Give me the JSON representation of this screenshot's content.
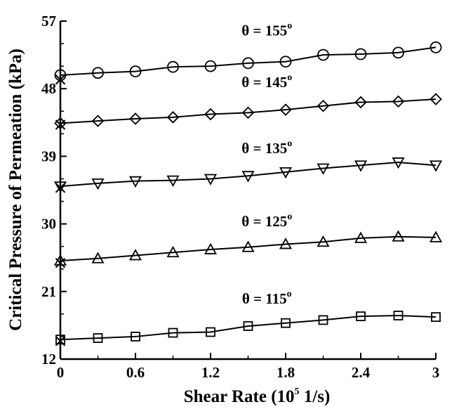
{
  "chart_data": {
    "type": "line",
    "xlabel": "Shear Rate (10",
    "xlabel_sup": "5",
    "xlabel_unit": " 1/s)",
    "ylabel": "Critical Pressure of Permeation (kPa)",
    "xlim": [
      0,
      3
    ],
    "ylim": [
      12,
      57
    ],
    "xticks": [
      "0",
      "0.6",
      "1.2",
      "1.8",
      "2.4",
      "3"
    ],
    "yticks": [
      "12",
      "21",
      "30",
      "39",
      "48",
      "57"
    ],
    "x": [
      0,
      0.3,
      0.6,
      0.9,
      1.2,
      1.5,
      1.8,
      2.1,
      2.4,
      2.7,
      3.0
    ],
    "series": [
      {
        "name": "θ = 155",
        "sup": "o",
        "marker": "circle",
        "values": [
          49.8,
          50.1,
          50.3,
          50.9,
          51.0,
          51.4,
          51.6,
          52.5,
          52.6,
          52.8,
          53.5
        ],
        "cross_marker": 49.2
      },
      {
        "name": "θ = 145",
        "sup": "o",
        "marker": "diamond",
        "values": [
          43.4,
          43.7,
          44.0,
          44.2,
          44.6,
          44.8,
          45.2,
          45.7,
          46.2,
          46.3,
          46.6
        ],
        "cross_marker": 43.2
      },
      {
        "name": "θ = 135",
        "sup": "o",
        "marker": "triangle-down",
        "values": [
          35.0,
          35.4,
          35.7,
          35.8,
          36.0,
          36.4,
          36.9,
          37.4,
          37.8,
          38.2,
          37.8
        ],
        "cross_marker": 34.8
      },
      {
        "name": "θ = 125",
        "sup": "o",
        "marker": "triangle-up",
        "values": [
          25.1,
          25.4,
          25.8,
          26.2,
          26.6,
          26.9,
          27.3,
          27.6,
          28.1,
          28.3,
          28.2
        ],
        "cross_marker": 24.8
      },
      {
        "name": "θ = 115",
        "sup": "o",
        "marker": "square",
        "values": [
          14.6,
          14.8,
          15.0,
          15.5,
          15.6,
          16.4,
          16.8,
          17.2,
          17.7,
          17.8,
          17.6
        ],
        "cross_marker": 14.4
      }
    ],
    "labels_at": [
      {
        "series": 0,
        "x": 1.65,
        "y": 55.1
      },
      {
        "series": 1,
        "x": 1.65,
        "y": 48.2
      },
      {
        "series": 2,
        "x": 1.65,
        "y": 39.4
      },
      {
        "series": 3,
        "x": 1.65,
        "y": 29.7
      },
      {
        "series": 4,
        "x": 1.65,
        "y": 19.4
      }
    ],
    "line_color": "#000000",
    "grid": false
  }
}
